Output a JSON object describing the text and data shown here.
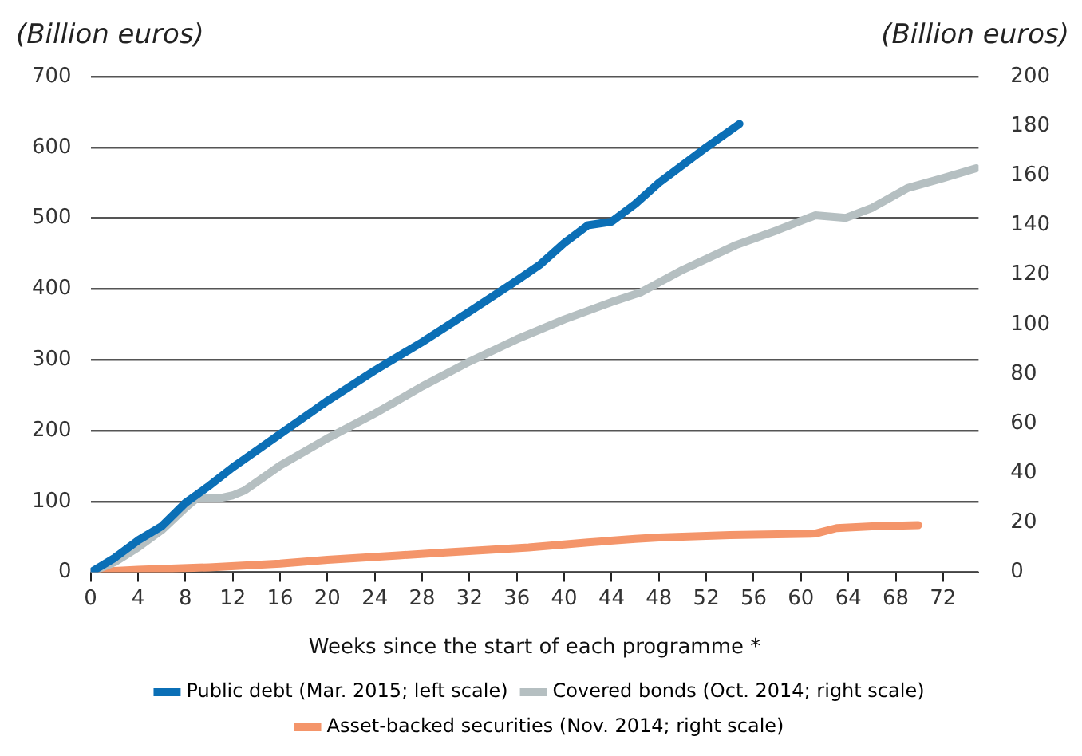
{
  "chart_data": {
    "type": "line",
    "xlabel": "Weeks since the start of each programme *",
    "ylabel": "(Billion euros)",
    "y2label": "(Billion euros)",
    "xlim": [
      0,
      75
    ],
    "xticks": [
      0,
      4,
      8,
      12,
      16,
      20,
      24,
      28,
      32,
      36,
      40,
      44,
      48,
      52,
      56,
      60,
      64,
      68,
      72
    ],
    "ylim": [
      0,
      700
    ],
    "yticks": [
      0,
      100,
      200,
      300,
      400,
      500,
      600,
      700
    ],
    "y2lim": [
      0,
      200
    ],
    "y2ticks": [
      0,
      20,
      40,
      60,
      80,
      100,
      120,
      140,
      160,
      180,
      200
    ],
    "grid": "y",
    "legend": "bottom",
    "marker": "none",
    "line_style": "solid",
    "series": [
      {
        "name": "Public debt (Mar. 2015; left scale)",
        "color": "#0b6fb6",
        "axis": "y",
        "x": [
          0,
          2,
          4,
          6,
          8,
          10,
          12,
          16,
          20,
          24,
          28,
          32,
          36,
          38,
          40,
          42,
          44,
          46,
          48,
          50,
          52,
          54.8
        ],
        "values": [
          0,
          20,
          45,
          65,
          98,
          122,
          148,
          195,
          242,
          285,
          325,
          368,
          412,
          435,
          465,
          490,
          495,
          520,
          550,
          575,
          600,
          633
        ]
      },
      {
        "name": "Covered bonds (Oct. 2014; right scale)",
        "color": "#b5bfc1",
        "axis": "y2",
        "x": [
          0,
          2,
          4,
          6,
          8,
          9,
          11,
          12,
          13,
          16,
          20,
          24,
          28,
          32,
          36,
          40,
          44,
          46.5,
          50,
          54.5,
          58,
          61.2,
          63.8,
          66,
          69,
          72,
          74.8
        ],
        "values": [
          0,
          4,
          10,
          17,
          26,
          30,
          30,
          31,
          33,
          43,
          54,
          64,
          75,
          85,
          94,
          102,
          109,
          113,
          122,
          132,
          138,
          144,
          143,
          147,
          155,
          159,
          163
        ]
      },
      {
        "name": "Asset-backed securities (Nov. 2014; right scale)",
        "color": "#f4956a",
        "axis": "y2",
        "x": [
          0,
          4,
          10,
          16,
          20,
          26,
          30,
          37,
          42,
          46,
          48,
          54,
          58,
          61.2,
          63,
          66,
          69.9
        ],
        "values": [
          0,
          1,
          2,
          3.5,
          5,
          6.8,
          8,
          10,
          12,
          13.5,
          14,
          15,
          15.3,
          15.6,
          17.8,
          18.5,
          19
        ]
      }
    ]
  }
}
